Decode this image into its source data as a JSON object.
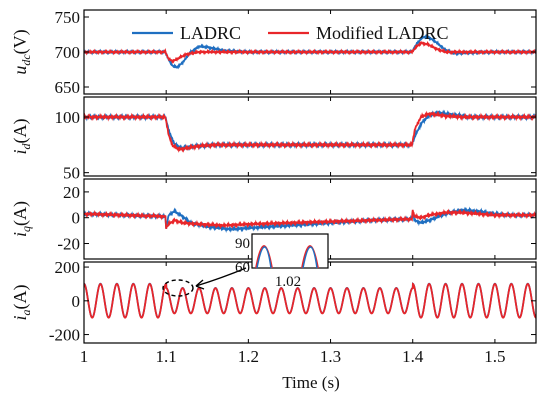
{
  "chart_data": [
    {
      "type": "line",
      "ylabel": "u_dc (V)",
      "ylabel_main": "u",
      "ylabel_sub": "dc",
      "ylabel_unit": "(V)",
      "ylim": [
        640,
        760
      ],
      "yticks": [
        "750",
        "700",
        "650"
      ],
      "ytick_values": [
        750,
        700,
        650
      ],
      "series": [
        {
          "name": "LADRC",
          "points": [
            [
              1.0,
              700
            ],
            [
              1.099,
              700
            ],
            [
              1.103,
              689
            ],
            [
              1.108,
              680
            ],
            [
              1.113,
              678
            ],
            [
              1.12,
              685
            ],
            [
              1.13,
              700
            ],
            [
              1.14,
              708
            ],
            [
              1.15,
              707
            ],
            [
              1.17,
              702
            ],
            [
              1.2,
              700
            ],
            [
              1.399,
              700
            ],
            [
              1.405,
              712
            ],
            [
              1.412,
              721
            ],
            [
              1.418,
              722
            ],
            [
              1.425,
              717
            ],
            [
              1.44,
              703
            ],
            [
              1.45,
              698
            ],
            [
              1.47,
              699
            ],
            [
              1.5,
              700
            ],
            [
              1.55,
              700
            ]
          ]
        },
        {
          "name": "Modified LADRC",
          "points": [
            [
              1.0,
              700
            ],
            [
              1.099,
              700
            ],
            [
              1.103,
              690
            ],
            [
              1.108,
              687
            ],
            [
              1.115,
              691
            ],
            [
              1.125,
              697
            ],
            [
              1.14,
              700
            ],
            [
              1.399,
              700
            ],
            [
              1.405,
              708
            ],
            [
              1.41,
              713
            ],
            [
              1.418,
              711
            ],
            [
              1.43,
              704
            ],
            [
              1.44,
              700
            ],
            [
              1.55,
              700
            ]
          ]
        }
      ]
    },
    {
      "type": "line",
      "ylabel": "i_d (A)",
      "ylabel_main": "i",
      "ylabel_sub": "d",
      "ylabel_unit": "(A)",
      "ylim": [
        47,
        118
      ],
      "yticks": [
        "100",
        "50"
      ],
      "ytick_values": [
        100,
        50
      ],
      "series": [
        {
          "name": "LADRC",
          "points": [
            [
              1.0,
              100
            ],
            [
              1.099,
              100
            ],
            [
              1.104,
              86
            ],
            [
              1.11,
              76
            ],
            [
              1.118,
              72
            ],
            [
              1.125,
              73
            ],
            [
              1.14,
              74
            ],
            [
              1.16,
              75
            ],
            [
              1.2,
              75
            ],
            [
              1.399,
              75
            ],
            [
              1.404,
              85
            ],
            [
              1.412,
              96
            ],
            [
              1.42,
              101
            ],
            [
              1.43,
              104
            ],
            [
              1.45,
              102
            ],
            [
              1.47,
              100
            ],
            [
              1.55,
              100
            ]
          ]
        },
        {
          "name": "Modified LADRC",
          "points": [
            [
              1.0,
              100
            ],
            [
              1.099,
              100
            ],
            [
              1.103,
              84
            ],
            [
              1.108,
              74
            ],
            [
              1.116,
              71
            ],
            [
              1.125,
              72
            ],
            [
              1.14,
              74
            ],
            [
              1.16,
              75
            ],
            [
              1.2,
              75
            ],
            [
              1.399,
              75
            ],
            [
              1.403,
              90
            ],
            [
              1.41,
              100
            ],
            [
              1.42,
              103
            ],
            [
              1.44,
              101
            ],
            [
              1.46,
              100
            ],
            [
              1.55,
              100
            ]
          ]
        }
      ]
    },
    {
      "type": "line",
      "ylabel": "i_q (A)",
      "ylabel_main": "i",
      "ylabel_sub": "q",
      "ylabel_unit": "(A)",
      "ylim": [
        -32,
        30
      ],
      "yticks": [
        "20",
        "0",
        "-20"
      ],
      "ytick_values": [
        20,
        0,
        -20
      ],
      "series": [
        {
          "name": "LADRC",
          "points": [
            [
              1.0,
              3
            ],
            [
              1.099,
              1
            ],
            [
              1.1,
              -8
            ],
            [
              1.103,
              2
            ],
            [
              1.11,
              5
            ],
            [
              1.12,
              1
            ],
            [
              1.13,
              -4
            ],
            [
              1.15,
              -7
            ],
            [
              1.18,
              -9
            ],
            [
              1.2,
              -8
            ],
            [
              1.25,
              -6
            ],
            [
              1.3,
              -4
            ],
            [
              1.35,
              -2
            ],
            [
              1.399,
              -1
            ],
            [
              1.4,
              5
            ],
            [
              1.402,
              -2
            ],
            [
              1.41,
              -4
            ],
            [
              1.42,
              -2
            ],
            [
              1.44,
              3
            ],
            [
              1.46,
              6
            ],
            [
              1.48,
              5
            ],
            [
              1.5,
              3
            ],
            [
              1.52,
              2
            ],
            [
              1.55,
              2
            ]
          ]
        },
        {
          "name": "Modified LADRC",
          "points": [
            [
              1.0,
              3
            ],
            [
              1.099,
              1
            ],
            [
              1.1,
              -8
            ],
            [
              1.103,
              -5
            ],
            [
              1.11,
              -2
            ],
            [
              1.12,
              -4
            ],
            [
              1.14,
              -5
            ],
            [
              1.17,
              -6
            ],
            [
              1.2,
              -5
            ],
            [
              1.25,
              -4
            ],
            [
              1.3,
              -3
            ],
            [
              1.35,
              -2
            ],
            [
              1.399,
              -1
            ],
            [
              1.4,
              6
            ],
            [
              1.402,
              1
            ],
            [
              1.41,
              0
            ],
            [
              1.42,
              2
            ],
            [
              1.44,
              4
            ],
            [
              1.46,
              4
            ],
            [
              1.48,
              3
            ],
            [
              1.5,
              2
            ],
            [
              1.55,
              2
            ]
          ]
        }
      ]
    },
    {
      "type": "line",
      "ylabel": "i_a (A)",
      "ylabel_main": "i",
      "ylabel_sub": "a",
      "ylabel_unit": "(A)",
      "ylim": [
        -250,
        230
      ],
      "yticks": [
        "200",
        "0",
        "-200"
      ],
      "ytick_values": [
        200,
        0,
        -200
      ],
      "xlim": [
        1.0,
        1.55
      ],
      "xticks": [
        "1",
        "1.1",
        "1.2",
        "1.3",
        "1.4",
        "1.5"
      ],
      "xtick_values": [
        1.0,
        1.1,
        1.2,
        1.3,
        1.4,
        1.5
      ],
      "xlabel": "Time (s)",
      "waveform": {
        "frequency_hz": 50,
        "amplitude_a": 100,
        "amplitude_after_1_1_a": 75,
        "amplitude_after_1_4_a": 100
      },
      "inset": {
        "yticks": [
          "90",
          "60"
        ],
        "xtick": "1.02"
      },
      "series": [
        {
          "name": "LADRC"
        },
        {
          "name": "Modified LADRC"
        }
      ]
    }
  ],
  "legend": {
    "entries": [
      "LADRC",
      "Modified LADRC"
    ],
    "placement": "top"
  },
  "colors": {
    "LADRC": "#1f6fc1",
    "Modified LADRC": "#e8262a",
    "axis": "#000000"
  }
}
